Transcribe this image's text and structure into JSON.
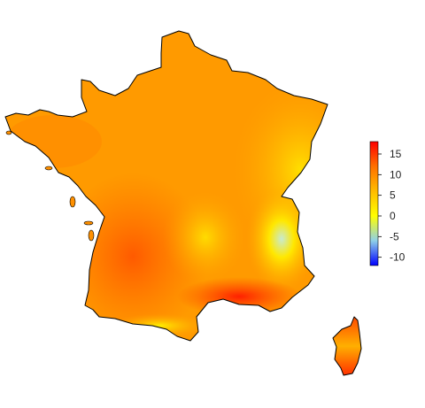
{
  "map": {
    "regions": [
      "France (mainland)",
      "Corsica"
    ],
    "colors": {
      "warm": "#ff2400",
      "mild": "#ff8f00",
      "cool": "#ffe000",
      "cold": "#b0e0c8",
      "outline": "#000000"
    }
  },
  "legend": {
    "orientation": "vertical",
    "placement": "right",
    "range": [
      -12,
      18
    ],
    "ticks": [
      "15",
      "10",
      "5",
      "0",
      "-5",
      "-10"
    ],
    "tick_values": [
      15,
      10,
      5,
      0,
      -5,
      -10
    ],
    "gradient": [
      {
        "value": -12,
        "color": "#0000ff"
      },
      {
        "value": -6,
        "color": "#8fd0e8"
      },
      {
        "value": 0,
        "color": "#ffff00"
      },
      {
        "value": 7,
        "color": "#ffb000"
      },
      {
        "value": 12,
        "color": "#ff7000"
      },
      {
        "value": 18,
        "color": "#ff0000"
      }
    ]
  }
}
